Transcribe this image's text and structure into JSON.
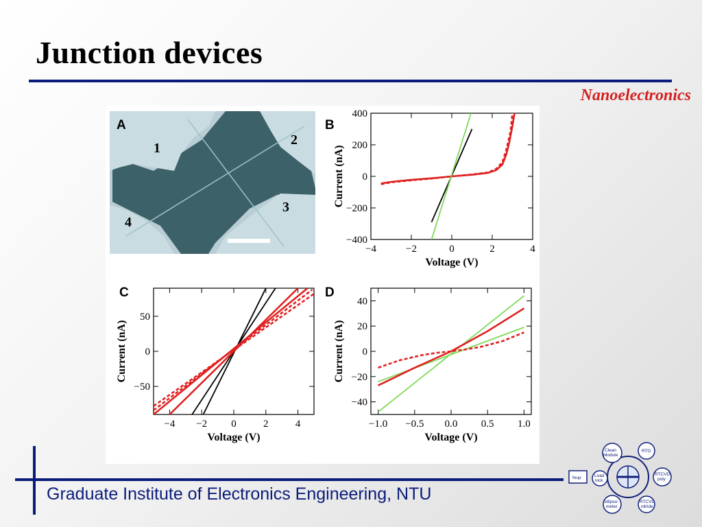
{
  "slide": {
    "title": "Junction devices",
    "subtitle": "Nanoelectronics",
    "footer": "Graduate Institute of Electronics Engineering, NTU"
  },
  "colors": {
    "title_rule": "#0a1c7a",
    "subtitle": "#d42020",
    "footer": "#0a1c7a",
    "red_trace": "#e02020",
    "green_trace": "#7ed957",
    "black_trace": "#000000"
  },
  "micrograph": {
    "panel_label": "A",
    "electrode_labels": [
      "1",
      "2",
      "3",
      "4"
    ]
  },
  "chart_data": [
    {
      "panel": "B",
      "type": "line",
      "xlabel": "Voltage (V)",
      "ylabel": "Current (nA)",
      "xlim": [
        -4,
        4
      ],
      "ylim": [
        -400,
        400
      ],
      "xticks": [
        -4,
        -2,
        0,
        2,
        4
      ],
      "yticks": [
        400,
        200,
        0,
        -200,
        -400
      ],
      "xtick_labels": [
        "−4",
        "−2",
        "0",
        "2",
        "4"
      ],
      "ytick_labels": [
        "400",
        "200",
        "0",
        "−200",
        "−400"
      ],
      "series": [
        {
          "color": "red",
          "dash": false,
          "x": [
            -3.5,
            -3,
            -2,
            -1,
            0,
            1,
            1.8,
            2.2,
            2.5,
            2.7,
            2.85,
            3.0,
            3.1
          ],
          "y": [
            -45,
            -35,
            -22,
            -12,
            0,
            10,
            22,
            40,
            75,
            140,
            220,
            320,
            400
          ]
        },
        {
          "color": "red",
          "dash": true,
          "x": [
            -3.5,
            -3,
            -2,
            -1,
            0,
            1,
            1.8,
            2.2,
            2.5,
            2.7,
            2.9,
            3.0
          ],
          "y": [
            -50,
            -38,
            -25,
            -14,
            0,
            12,
            25,
            48,
            90,
            170,
            280,
            400
          ]
        },
        {
          "color": "black",
          "dash": false,
          "x": [
            -1.0,
            1.0
          ],
          "y": [
            -290,
            300
          ]
        },
        {
          "color": "green",
          "dash": false,
          "x": [
            -1.0,
            0.95
          ],
          "y": [
            -400,
            400
          ]
        }
      ]
    },
    {
      "panel": "C",
      "type": "line",
      "xlabel": "Voltage (V)",
      "ylabel": "Current (nA)",
      "xlim": [
        -5,
        5
      ],
      "ylim": [
        -90,
        90
      ],
      "xticks": [
        -4,
        -2,
        0,
        2,
        4
      ],
      "yticks": [
        50,
        0,
        -50
      ],
      "xtick_labels": [
        "−4",
        "−2",
        "0",
        "2",
        "4"
      ],
      "ytick_labels": [
        "50",
        "0",
        "−50"
      ],
      "series": [
        {
          "color": "black",
          "dash": false,
          "x": [
            -2.6,
            2.6
          ],
          "y": [
            -90,
            90
          ]
        },
        {
          "color": "black",
          "dash": false,
          "x": [
            -1.9,
            2.0
          ],
          "y": [
            -90,
            90
          ]
        },
        {
          "color": "red",
          "dash": false,
          "x": [
            -4.0,
            4.0
          ],
          "y": [
            -90,
            90
          ]
        },
        {
          "color": "red",
          "dash": false,
          "x": [
            -5.0,
            4.6
          ],
          "y": [
            -90,
            90
          ]
        },
        {
          "color": "red",
          "dash": true,
          "x": [
            -5.0,
            4.9
          ],
          "y": [
            -84,
            88
          ]
        },
        {
          "color": "red",
          "dash": true,
          "x": [
            -5.0,
            5.0
          ],
          "y": [
            -78,
            82
          ]
        }
      ]
    },
    {
      "panel": "D",
      "type": "line",
      "xlabel": "Voltage (V)",
      "ylabel": "Current (nA)",
      "xlim": [
        -1.1,
        1.1
      ],
      "ylim": [
        -50,
        50
      ],
      "xticks": [
        -1.0,
        -0.5,
        0.0,
        0.5,
        1.0
      ],
      "yticks": [
        40,
        20,
        0,
        -20,
        -40
      ],
      "xtick_labels": [
        "−1.0",
        "−0.5",
        "0.0",
        "0.5",
        "1.0"
      ],
      "ytick_labels": [
        "40",
        "20",
        "0",
        "−20",
        "−40"
      ],
      "series": [
        {
          "color": "green",
          "dash": false,
          "x": [
            -1.0,
            1.0
          ],
          "y": [
            -48,
            44
          ]
        },
        {
          "color": "green",
          "dash": false,
          "x": [
            -1.0,
            1.0
          ],
          "y": [
            -24,
            19
          ]
        },
        {
          "color": "red",
          "dash": false,
          "x": [
            -1.0,
            -0.5,
            0,
            0.5,
            1.0
          ],
          "y": [
            -27,
            -13,
            0,
            16,
            34
          ]
        },
        {
          "color": "red",
          "dash": true,
          "x": [
            -1.0,
            -0.7,
            -0.4,
            -0.2,
            0,
            0.2,
            0.4,
            0.7,
            1.0
          ],
          "y": [
            -13,
            -7,
            -3,
            -1.2,
            0,
            1.5,
            3.5,
            8,
            15
          ]
        }
      ]
    }
  ]
}
